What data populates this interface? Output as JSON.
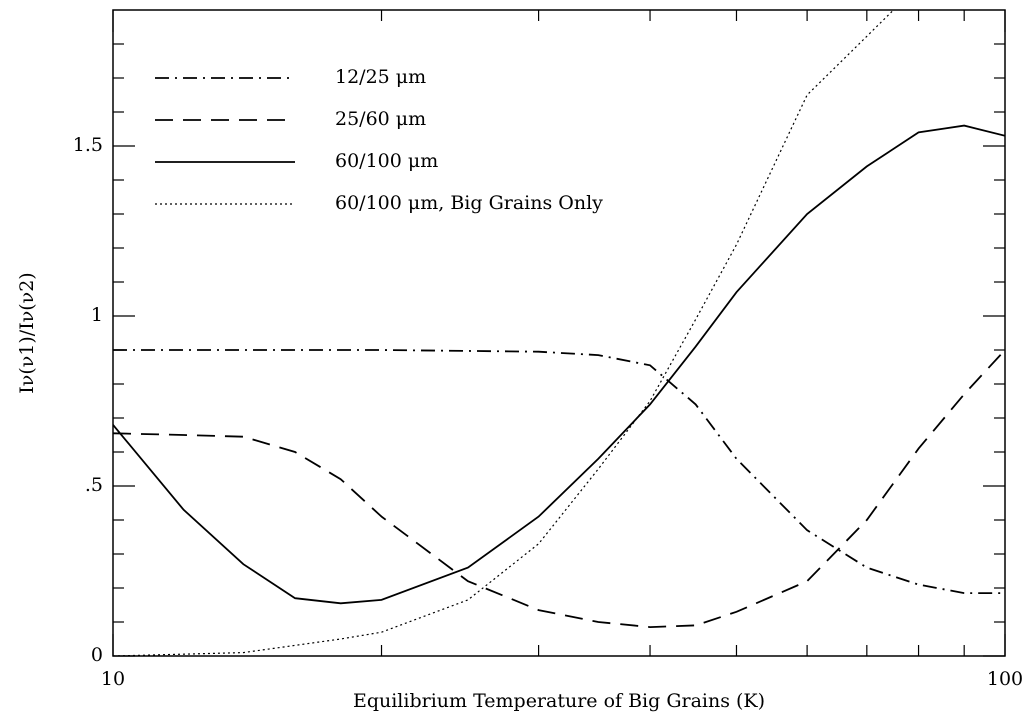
{
  "chart_data": {
    "type": "line",
    "xlabel": "Equilibrium Temperature of Big Grains (K)",
    "ylabel": "Iν(ν1)/Iν(ν2)",
    "xscale": "log",
    "xlim": [
      10,
      100
    ],
    "ylim": [
      0,
      1.9
    ],
    "xticks": [
      10,
      100
    ],
    "xminorticks": [
      20,
      30,
      40,
      50,
      60,
      70,
      80,
      90
    ],
    "yticks": [
      0,
      {
        "value": 0.5,
        "label": ".5"
      },
      1,
      1.5
    ],
    "yminorticks": [
      0.1,
      0.2,
      0.3,
      0.4,
      0.6,
      0.7,
      0.8,
      0.9,
      1.1,
      1.2,
      1.3,
      1.4,
      1.6,
      1.7,
      1.8
    ],
    "legend": "upper left",
    "series": [
      {
        "name": "12/25 μm",
        "color": "#000000",
        "style": "dashdot",
        "x": [
          10,
          20,
          30,
          35,
          40,
          45,
          50,
          60,
          70,
          80,
          90,
          100
        ],
        "values": [
          0.9,
          0.9,
          0.895,
          0.885,
          0.855,
          0.74,
          0.58,
          0.37,
          0.26,
          0.21,
          0.185,
          0.185
        ]
      },
      {
        "name": "25/60 μm",
        "color": "#000000",
        "style": "dashed",
        "x": [
          10,
          12,
          14,
          16,
          18,
          20,
          25,
          30,
          35,
          40,
          45,
          50,
          60,
          70,
          80,
          90,
          100
        ],
        "values": [
          0.655,
          0.65,
          0.645,
          0.6,
          0.52,
          0.41,
          0.22,
          0.135,
          0.1,
          0.085,
          0.09,
          0.13,
          0.22,
          0.4,
          0.61,
          0.77,
          0.9
        ]
      },
      {
        "name": "60/100 μm",
        "color": "#000000",
        "style": "solid",
        "x": [
          10,
          12,
          14,
          16,
          18,
          20,
          25,
          30,
          35,
          40,
          45,
          50,
          60,
          70,
          80,
          90,
          100
        ],
        "values": [
          0.68,
          0.43,
          0.27,
          0.17,
          0.155,
          0.165,
          0.26,
          0.41,
          0.58,
          0.74,
          0.91,
          1.07,
          1.3,
          1.44,
          1.54,
          1.56,
          1.53
        ]
      },
      {
        "name": "60/100 μm, Big Grains Only",
        "color": "#000000",
        "style": "dotted",
        "x": [
          10,
          14,
          18,
          20,
          25,
          30,
          35,
          40,
          45,
          50,
          60,
          75
        ],
        "values": [
          0,
          0.01,
          0.05,
          0.07,
          0.165,
          0.33,
          0.55,
          0.75,
          0.99,
          1.21,
          1.65,
          1.9
        ]
      }
    ]
  }
}
